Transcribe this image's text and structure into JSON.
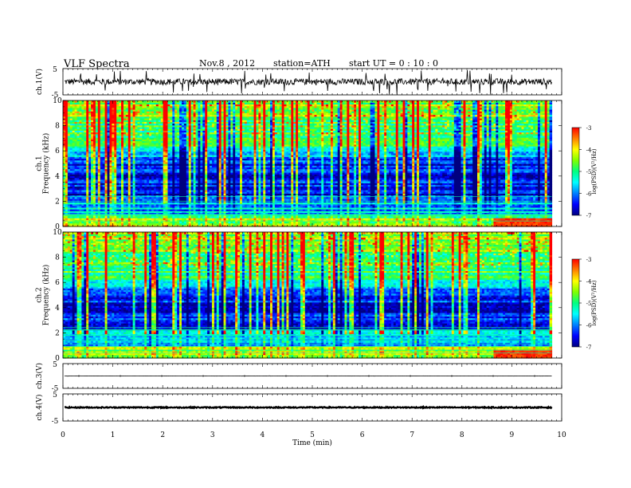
{
  "header": {
    "title": "VLF  Spectra",
    "date": "Nov.8  , 2012",
    "station": "station=ATH",
    "start_ut": "start  UT  =    0 : 10 : 0"
  },
  "colorbar_label": "log(PSD)(V²/Hz)",
  "colors": {
    "colormap": [
      "#000080",
      "#0000ff",
      "#0080ff",
      "#00ffff",
      "#00ff80",
      "#80ff00",
      "#ffff00",
      "#ff8000",
      "#ff0000",
      "#ffffff"
    ],
    "trace": "#000000"
  },
  "chart_data": [
    {
      "type": "line",
      "panel": "ch1-waveform",
      "ylabel": "ch.1(V)",
      "ylim": [
        -5,
        5
      ],
      "yticks": [
        "5",
        "-5"
      ],
      "xlim": [
        0,
        10
      ],
      "baseline": 0,
      "noise_amplitude": 1.2
    },
    {
      "type": "heatmap",
      "panel": "ch1-spectrogram",
      "ylabel": "ch.1\nFrequency  (kHz)",
      "ylim": [
        0,
        10
      ],
      "yticks": [
        "0",
        "2",
        "4",
        "6",
        "8",
        "10"
      ],
      "xlim": [
        0,
        9.8
      ],
      "colorbar": {
        "label": "log(PSD)(V²/Hz)",
        "range": [
          -7,
          -3
        ],
        "ticks": [
          "-3",
          "-4",
          "-5",
          "-6",
          "-7"
        ]
      }
    },
    {
      "type": "heatmap",
      "panel": "ch2-spectrogram",
      "ylabel": "ch.2\nFrequency  (kHz)",
      "ylim": [
        0,
        10
      ],
      "yticks": [
        "0",
        "2",
        "4",
        "6",
        "8",
        "10"
      ],
      "xlim": [
        0,
        9.8
      ],
      "colorbar": {
        "label": "log(PSD)(V²/Hz)",
        "range": [
          -7,
          -3
        ],
        "ticks": [
          "-3",
          "-4",
          "-5",
          "-6",
          "-7"
        ]
      }
    },
    {
      "type": "line",
      "panel": "ch3-waveform",
      "ylabel": "ch.3(V)",
      "ylim": [
        -5,
        5
      ],
      "yticks": [
        "5",
        "-5"
      ],
      "xlim": [
        0,
        10
      ],
      "baseline": 0,
      "noise_amplitude": 0.05
    },
    {
      "type": "line",
      "panel": "ch4-waveform",
      "ylabel": "ch.4(V)",
      "ylim": [
        -5,
        5
      ],
      "yticks": [
        "5",
        "-5"
      ],
      "xlim": [
        0,
        10
      ],
      "baseline": 0,
      "noise_amplitude": 0.2
    }
  ],
  "xaxis": {
    "label": "Time  (min)",
    "ticks": [
      "0",
      "1",
      "2",
      "3",
      "4",
      "5",
      "6",
      "7",
      "8",
      "9",
      "10"
    ],
    "range": [
      0,
      10
    ]
  }
}
